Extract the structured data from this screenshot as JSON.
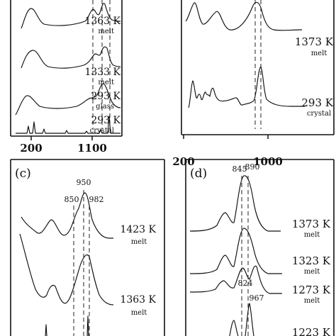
{
  "chart_data": [
    {
      "type": "line",
      "panel_label": "",
      "tick_labels": [
        "200",
        "1100"
      ],
      "peak_markers": [],
      "traces": [
        {
          "temperature": "1363 K",
          "state": "melt"
        },
        {
          "temperature": "1333 K",
          "state": "melt"
        },
        {
          "temperature": "293 K",
          "state": "glass"
        },
        {
          "temperature": "293 K",
          "state": "crystal"
        }
      ]
    },
    {
      "type": "line",
      "panel_label": "",
      "tick_labels": [
        "200",
        "1000"
      ],
      "peak_markers": [],
      "traces": [
        {
          "temperature": "1373 K",
          "state": "melt"
        },
        {
          "temperature": "293 K",
          "state": "crystal"
        }
      ]
    },
    {
      "type": "line",
      "panel_label": "(c)",
      "tick_labels": [],
      "peak_markers": [
        "850",
        "950",
        "982"
      ],
      "traces": [
        {
          "temperature": "1423 K",
          "state": "melt"
        },
        {
          "temperature": "1363 K",
          "state": "melt"
        }
      ]
    },
    {
      "type": "line",
      "panel_label": "(d)",
      "tick_labels": [],
      "peak_markers": [
        "845",
        "890",
        "824",
        "967"
      ],
      "traces": [
        {
          "temperature": "1373 K",
          "state": "melt"
        },
        {
          "temperature": "1323 K",
          "state": "melt"
        },
        {
          "temperature": "1273 K",
          "state": "melt"
        },
        {
          "temperature": "1223 K",
          "state": ""
        }
      ]
    }
  ]
}
